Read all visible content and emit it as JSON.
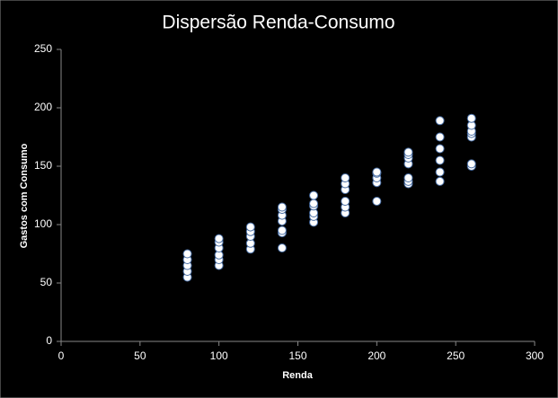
{
  "chart_data": {
    "type": "scatter",
    "title": "Dispersão Renda-Consumo",
    "x_label": "Renda",
    "y_label": "Gastos com Consumo",
    "series": [
      {
        "color": "#ffffff",
        "x": [
          80,
          80,
          80,
          80,
          80,
          100,
          100,
          100,
          100,
          100,
          100,
          120,
          120,
          120,
          120,
          120,
          140,
          140,
          140,
          140,
          140,
          140,
          140,
          160,
          160,
          160,
          160,
          160,
          160,
          180,
          180,
          180,
          180,
          180,
          180,
          200,
          200,
          200,
          200,
          200,
          220,
          220,
          220,
          220,
          220,
          220,
          220,
          240,
          240,
          240,
          240,
          240,
          240,
          260,
          260,
          260,
          260,
          260,
          260,
          260
        ],
        "values": [
          55,
          60,
          65,
          70,
          75,
          65,
          70,
          74,
          80,
          85,
          88,
          79,
          84,
          90,
          94,
          98,
          80,
          93,
          95,
          103,
          108,
          113,
          115,
          102,
          107,
          110,
          116,
          118,
          125,
          110,
          115,
          120,
          130,
          135,
          140,
          120,
          136,
          140,
          144,
          145,
          135,
          137,
          140,
          152,
          157,
          160,
          162,
          137,
          145,
          155,
          165,
          175,
          189,
          150,
          152,
          175,
          178,
          180,
          185,
          191
        ]
      }
    ],
    "xlim": [
      0,
      300
    ],
    "xticks": [
      0,
      50,
      100,
      150,
      200,
      250,
      300
    ],
    "ylim": [
      0,
      250
    ],
    "yticks": [
      0,
      50,
      100,
      150,
      200,
      250
    ]
  }
}
